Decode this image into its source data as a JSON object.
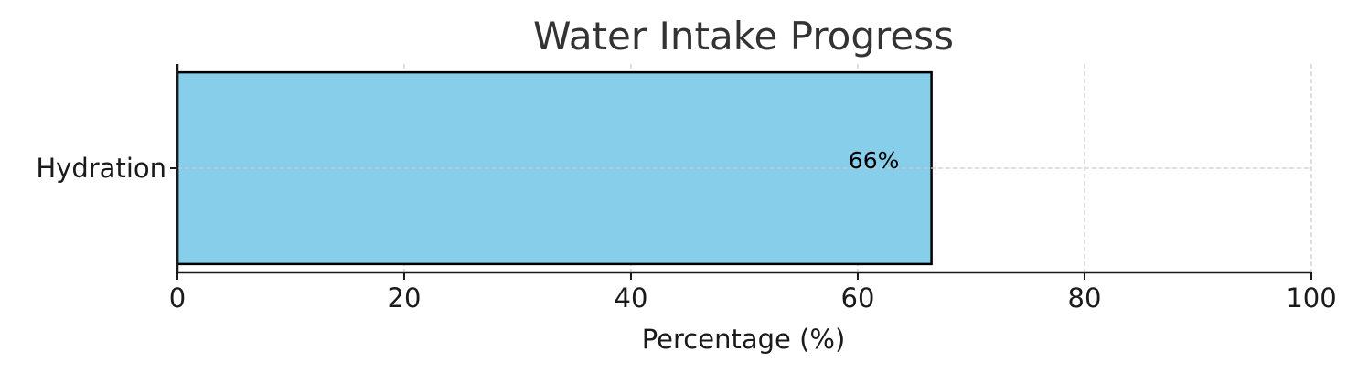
{
  "chart_data": {
    "type": "bar",
    "orientation": "horizontal",
    "title": "Water Intake Progress",
    "xlabel": "Percentage (%)",
    "ylabel": "",
    "categories": [
      "Hydration"
    ],
    "values": [
      66.5
    ],
    "data_labels": [
      "66%"
    ],
    "xlim": [
      0,
      100
    ],
    "xticks": [
      0,
      20,
      40,
      60,
      80,
      100
    ],
    "grid": true,
    "legend": "none",
    "colors": {
      "bar_fill": "#87CEEB",
      "bar_edge": "#000000",
      "grid": "#cccccc",
      "axis": "#1a1a1a",
      "title": "#333333"
    }
  }
}
